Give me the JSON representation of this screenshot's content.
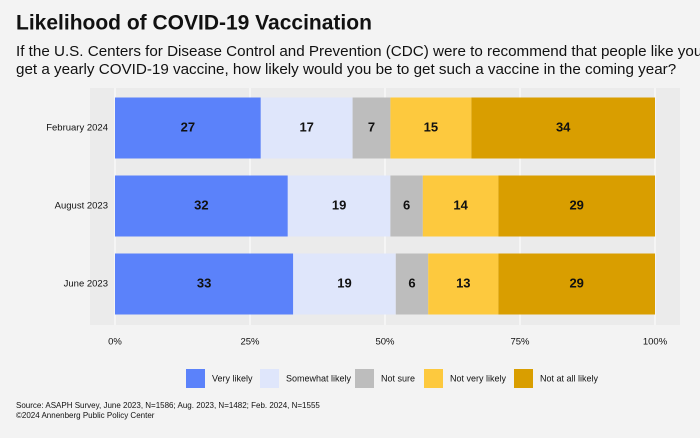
{
  "chart_data": {
    "type": "stacked-bar-horizontal",
    "title": "Likelihood of COVID-19 Vaccination",
    "subtitle": [
      "If the U.S. Centers for Disease Control and Prevention (CDC) were to recommend that people like you",
      "get a yearly COVID-19 vaccine, how likely would you be to get such a vaccine in the coming year?"
    ],
    "categories": [
      "February 2024",
      "August 2023",
      "June 2023"
    ],
    "series": [
      {
        "name": "Very likely",
        "color": "#5b82fa",
        "label_color": "#ffffff",
        "values": [
          27,
          32,
          33
        ]
      },
      {
        "name": "Somewhat likely",
        "color": "#dfe6fb",
        "label_color": "#000000",
        "values": [
          17,
          19,
          19
        ]
      },
      {
        "name": "Not sure",
        "color": "#bdbdbd",
        "label_color": "#000000",
        "values": [
          7,
          6,
          6
        ]
      },
      {
        "name": "Not very likely",
        "color": "#fdc93e",
        "label_color": "#000000",
        "values": [
          15,
          14,
          13
        ]
      },
      {
        "name": "Not at all likely",
        "color": "#d99e00",
        "label_color": "#000000",
        "values": [
          34,
          29,
          29
        ]
      }
    ],
    "xlim": [
      0,
      100
    ],
    "xticks": [
      {
        "value": 0,
        "label": "0%"
      },
      {
        "value": 25,
        "label": "25%"
      },
      {
        "value": 50,
        "label": "50%"
      },
      {
        "value": 75,
        "label": "75%"
      },
      {
        "value": 100,
        "label": "100%"
      }
    ],
    "grid": true,
    "legend": "bottom",
    "source": [
      "Source: ASAPH Survey, June 2023, N=1586; Aug. 2023, N=1482; Feb. 2024, N=1555",
      "©2024 Annenberg Public Policy Center"
    ]
  }
}
